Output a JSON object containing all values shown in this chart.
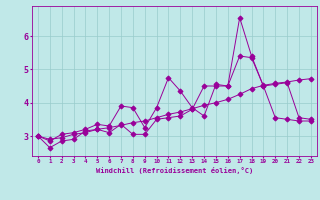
{
  "xlabel": "Windchill (Refroidissement éolien,°C)",
  "background_color": "#c0e8e8",
  "line_color": "#990099",
  "grid_color": "#99cccc",
  "xlim": [
    -0.5,
    23.5
  ],
  "ylim": [
    2.4,
    6.9
  ],
  "xticks": [
    0,
    1,
    2,
    3,
    4,
    5,
    6,
    7,
    8,
    9,
    10,
    11,
    12,
    13,
    14,
    15,
    16,
    17,
    18,
    19,
    20,
    21,
    22,
    23
  ],
  "yticks": [
    3,
    4,
    5,
    6
  ],
  "series1_x": [
    0,
    1,
    2,
    3,
    4,
    5,
    6,
    7,
    8,
    9,
    10,
    11,
    12,
    13,
    14,
    15,
    16,
    17,
    18,
    19,
    20,
    21,
    22,
    23
  ],
  "series1_y": [
    3.0,
    2.65,
    2.85,
    2.9,
    3.15,
    3.2,
    3.1,
    3.35,
    3.05,
    3.05,
    3.5,
    3.55,
    3.6,
    3.8,
    4.5,
    4.5,
    4.5,
    6.55,
    5.4,
    4.5,
    3.55,
    3.5,
    3.45,
    3.45
  ],
  "series2_x": [
    0,
    1,
    2,
    3,
    4,
    5,
    6,
    7,
    8,
    9,
    10,
    11,
    12,
    13,
    14,
    15,
    16,
    17,
    18,
    19,
    20,
    21,
    22,
    23
  ],
  "series2_y": [
    3.0,
    2.85,
    3.05,
    3.1,
    3.2,
    3.35,
    3.3,
    3.9,
    3.85,
    3.25,
    3.85,
    4.75,
    4.35,
    3.85,
    3.6,
    4.55,
    4.5,
    5.4,
    5.35,
    4.5,
    4.55,
    4.6,
    3.55,
    3.5
  ],
  "series3_x": [
    0,
    1,
    2,
    3,
    4,
    5,
    6,
    7,
    8,
    9,
    10,
    11,
    12,
    13,
    14,
    15,
    16,
    17,
    18,
    19,
    20,
    21,
    22,
    23
  ],
  "series3_y": [
    3.0,
    2.9,
    2.95,
    3.05,
    3.1,
    3.2,
    3.25,
    3.32,
    3.4,
    3.45,
    3.55,
    3.65,
    3.72,
    3.82,
    3.92,
    4.0,
    4.1,
    4.25,
    4.42,
    4.52,
    4.58,
    4.62,
    4.68,
    4.72
  ]
}
